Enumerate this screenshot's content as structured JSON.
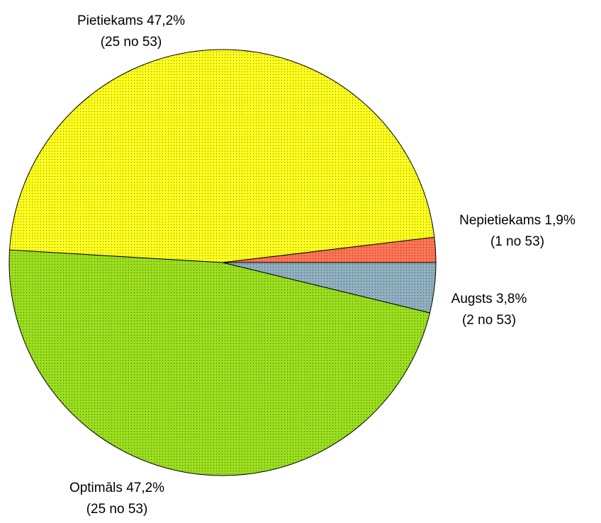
{
  "chart_data": {
    "type": "pie",
    "categories": [
      "Augsts",
      "Optimāls",
      "Pietiekams",
      "Nepietiekams"
    ],
    "values": [
      3.8,
      47.2,
      47.2,
      1.9
    ],
    "value_labels": [
      "3,8%",
      "47,2%",
      "47,2%",
      "1,9%"
    ],
    "count_labels": [
      "(2 no 53)",
      "(25 no 53)",
      "(25 no 53)",
      "(1 no 53)"
    ],
    "colors": [
      "#8fb0bf",
      "#9ade1e",
      "#ffff1e",
      "#ff7452"
    ]
  }
}
